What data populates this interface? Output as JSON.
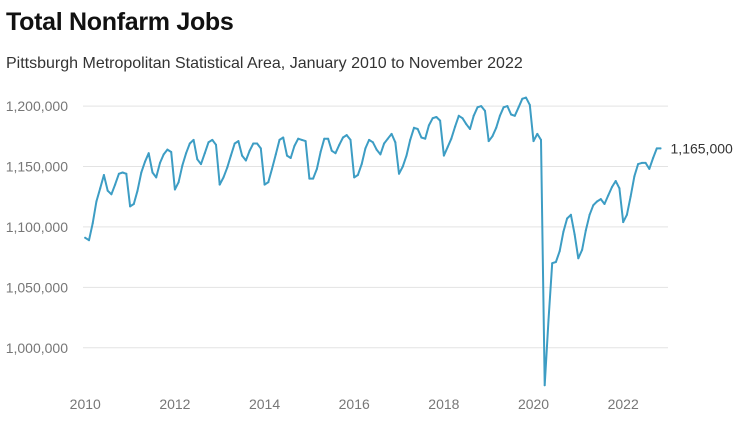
{
  "chart_data": {
    "type": "line",
    "title": "Total Nonfarm Jobs",
    "subtitle": "Pittsburgh Metropolitan Statistical Area, January 2010 to November 2022",
    "xlabel": "",
    "ylabel": "",
    "x_ticks": [
      "2010",
      "2012",
      "2014",
      "2016",
      "2018",
      "2020",
      "2022"
    ],
    "y_ticks": [
      "1,000,000",
      "1,050,000",
      "1,100,000",
      "1,150,000",
      "1,200,000"
    ],
    "y_tick_values": [
      1000000,
      1050000,
      1100000,
      1150000,
      1200000
    ],
    "ylim": [
      970000,
      1210000
    ],
    "xlim": [
      "2010-01",
      "2022-11"
    ],
    "grid": "horizontal",
    "line_color": "#3d9dc4",
    "end_label": "1,165,000",
    "series": [
      {
        "x": [
          "2010-01",
          "2010-02",
          "2010-03",
          "2010-04",
          "2010-05",
          "2010-06",
          "2010-07",
          "2010-08",
          "2010-09",
          "2010-10",
          "2010-11",
          "2010-12",
          "2011-01",
          "2011-02",
          "2011-03",
          "2011-04",
          "2011-05",
          "2011-06",
          "2011-07",
          "2011-08",
          "2011-09",
          "2011-10",
          "2011-11",
          "2011-12",
          "2012-01",
          "2012-02",
          "2012-03",
          "2012-04",
          "2012-05",
          "2012-06",
          "2012-07",
          "2012-08",
          "2012-09",
          "2012-10",
          "2012-11",
          "2012-12",
          "2013-01",
          "2013-02",
          "2013-03",
          "2013-04",
          "2013-05",
          "2013-06",
          "2013-07",
          "2013-08",
          "2013-09",
          "2013-10",
          "2013-11",
          "2013-12",
          "2014-01",
          "2014-02",
          "2014-03",
          "2014-04",
          "2014-05",
          "2014-06",
          "2014-07",
          "2014-08",
          "2014-09",
          "2014-10",
          "2014-11",
          "2014-12",
          "2015-01",
          "2015-02",
          "2015-03",
          "2015-04",
          "2015-05",
          "2015-06",
          "2015-07",
          "2015-08",
          "2015-09",
          "2015-10",
          "2015-11",
          "2015-12",
          "2016-01",
          "2016-02",
          "2016-03",
          "2016-04",
          "2016-05",
          "2016-06",
          "2016-07",
          "2016-08",
          "2016-09",
          "2016-10",
          "2016-11",
          "2016-12",
          "2017-01",
          "2017-02",
          "2017-03",
          "2017-04",
          "2017-05",
          "2017-06",
          "2017-07",
          "2017-08",
          "2017-09",
          "2017-10",
          "2017-11",
          "2017-12",
          "2018-01",
          "2018-02",
          "2018-03",
          "2018-04",
          "2018-05",
          "2018-06",
          "2018-07",
          "2018-08",
          "2018-09",
          "2018-10",
          "2018-11",
          "2018-12",
          "2019-01",
          "2019-02",
          "2019-03",
          "2019-04",
          "2019-05",
          "2019-06",
          "2019-07",
          "2019-08",
          "2019-09",
          "2019-10",
          "2019-11",
          "2019-12",
          "2020-01",
          "2020-02",
          "2020-03",
          "2020-04",
          "2020-05",
          "2020-06",
          "2020-07",
          "2020-08",
          "2020-09",
          "2020-10",
          "2020-11",
          "2020-12",
          "2021-01",
          "2021-02",
          "2021-03",
          "2021-04",
          "2021-05",
          "2021-06",
          "2021-07",
          "2021-08",
          "2021-09",
          "2021-10",
          "2021-11",
          "2021-12",
          "2022-01",
          "2022-02",
          "2022-03",
          "2022-04",
          "2022-05",
          "2022-06",
          "2022-07",
          "2022-08",
          "2022-09",
          "2022-10",
          "2022-11"
        ],
        "y": [
          1091000,
          1089000,
          1103000,
          1121000,
          1132000,
          1143000,
          1130000,
          1127000,
          1135000,
          1144000,
          1145000,
          1144000,
          1117000,
          1119000,
          1130000,
          1145000,
          1154000,
          1161000,
          1145000,
          1141000,
          1153000,
          1160000,
          1164000,
          1162000,
          1131000,
          1137000,
          1151000,
          1161000,
          1169000,
          1172000,
          1156000,
          1152000,
          1161000,
          1170000,
          1172000,
          1168000,
          1135000,
          1141000,
          1149000,
          1159000,
          1169000,
          1171000,
          1159000,
          1155000,
          1163000,
          1169000,
          1169000,
          1165000,
          1135000,
          1137000,
          1148000,
          1160000,
          1172000,
          1174000,
          1159000,
          1157000,
          1167000,
          1173000,
          1172000,
          1171000,
          1140000,
          1140000,
          1148000,
          1162000,
          1173000,
          1173000,
          1163000,
          1161000,
          1168000,
          1174000,
          1176000,
          1172000,
          1141000,
          1143000,
          1152000,
          1165000,
          1172000,
          1170000,
          1164000,
          1160000,
          1169000,
          1173000,
          1177000,
          1170000,
          1144000,
          1150000,
          1159000,
          1172000,
          1182000,
          1181000,
          1174000,
          1173000,
          1184000,
          1190000,
          1191000,
          1188000,
          1159000,
          1166000,
          1173000,
          1183000,
          1192000,
          1190000,
          1185000,
          1181000,
          1192000,
          1199000,
          1200000,
          1196000,
          1171000,
          1175000,
          1182000,
          1192000,
          1199000,
          1200000,
          1193000,
          1192000,
          1199000,
          1206000,
          1207000,
          1201000,
          1171000,
          1177000,
          1172000,
          969000,
          1023000,
          1070000,
          1071000,
          1080000,
          1096000,
          1107000,
          1110000,
          1094000,
          1074000,
          1081000,
          1097000,
          1110000,
          1118000,
          1121000,
          1123000,
          1119000,
          1126000,
          1133000,
          1138000,
          1132000,
          1104000,
          1110000,
          1125000,
          1142000,
          1152000,
          1153000,
          1153000,
          1148000,
          1157000,
          1165000,
          1165000
        ]
      }
    ]
  }
}
